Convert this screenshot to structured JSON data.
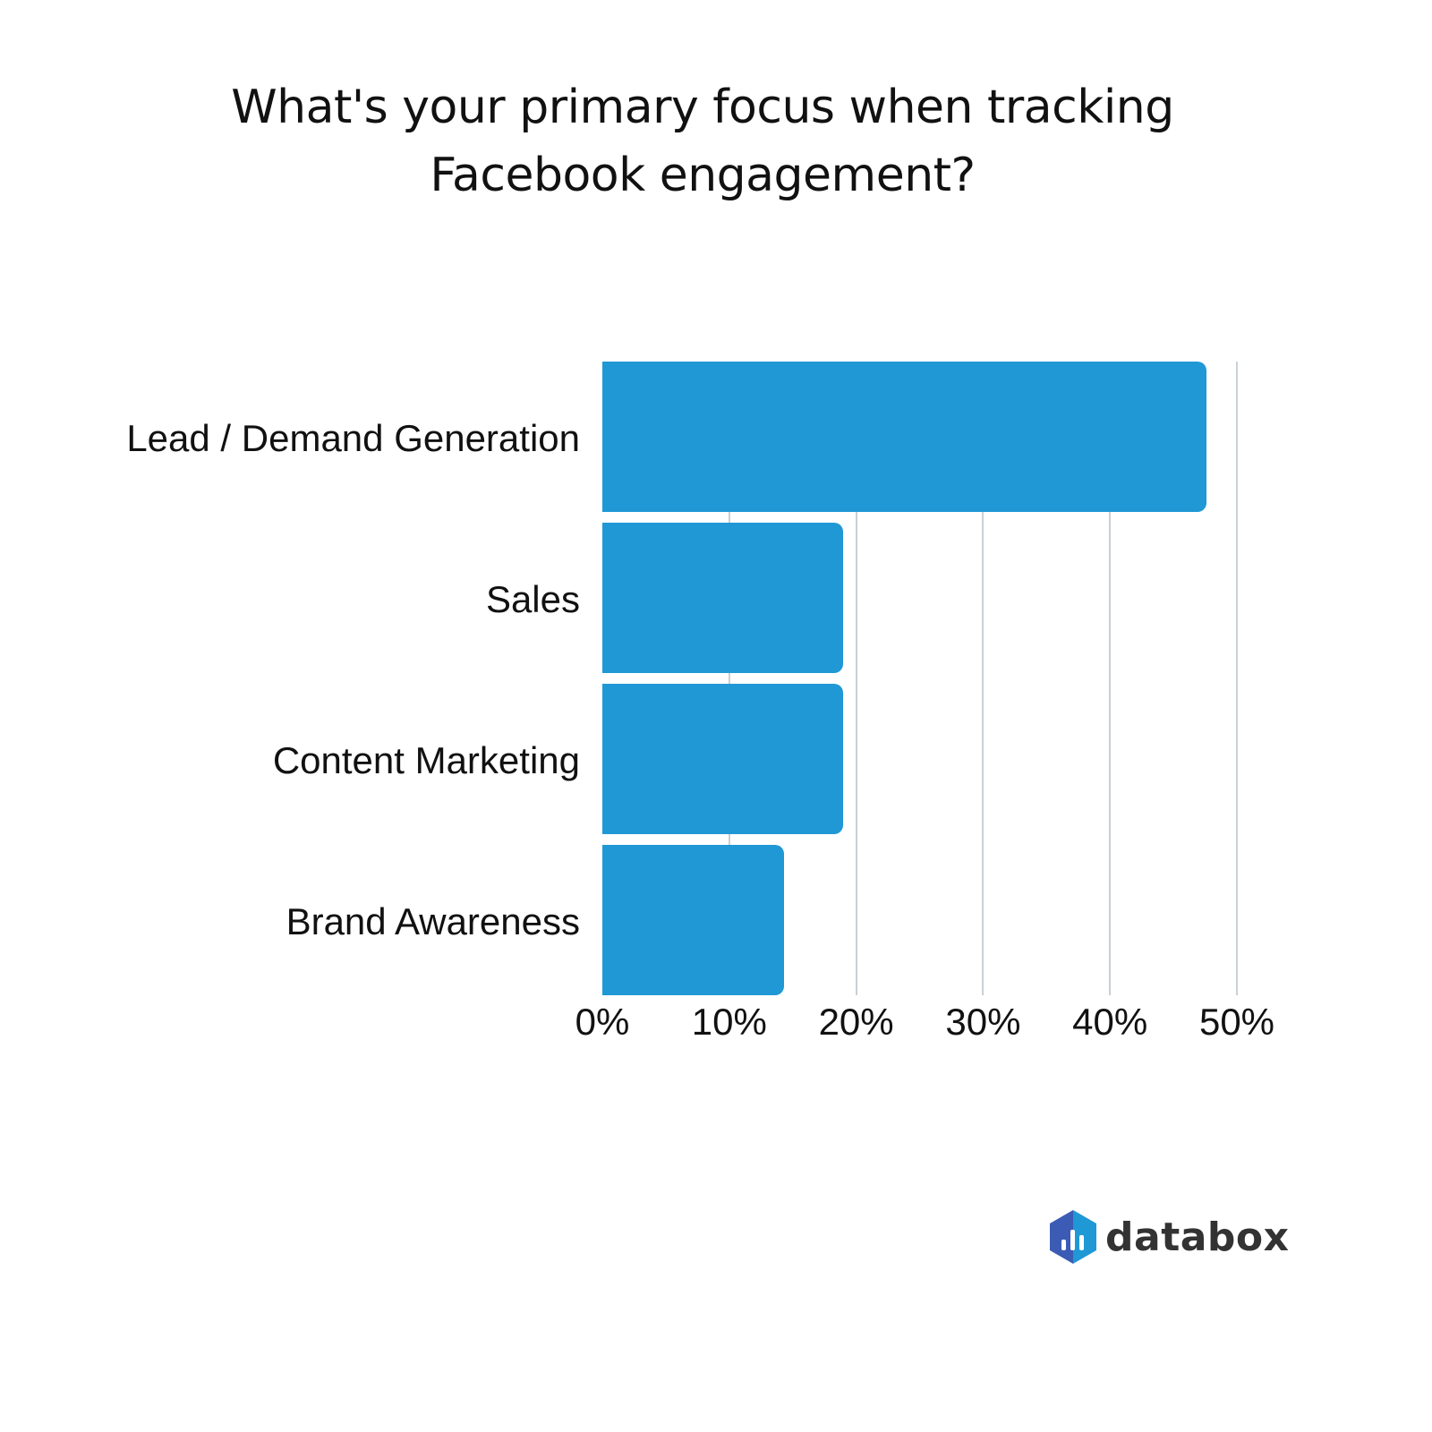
{
  "chart_data": {
    "type": "bar",
    "orientation": "horizontal",
    "title": "What's your primary focus when tracking Facebook engagement?",
    "title_lines": [
      "What's your primary focus when tracking",
      "Facebook engagement?"
    ],
    "categories": [
      "Lead / Demand Generation",
      "Sales",
      "Content Marketing",
      "Brand Awareness"
    ],
    "values": [
      47.6,
      19.0,
      19.0,
      14.3
    ],
    "xlabel": "",
    "ylabel": "",
    "xlim": [
      0,
      50
    ],
    "x_ticks": [
      "0%",
      "10%",
      "20%",
      "30%",
      "40%",
      "50%"
    ],
    "grid": true,
    "legend": "none",
    "bar_color": "#1f98d5"
  },
  "brand": {
    "name": "databox",
    "colors": [
      "#3b5bb5",
      "#1f98d5"
    ]
  }
}
